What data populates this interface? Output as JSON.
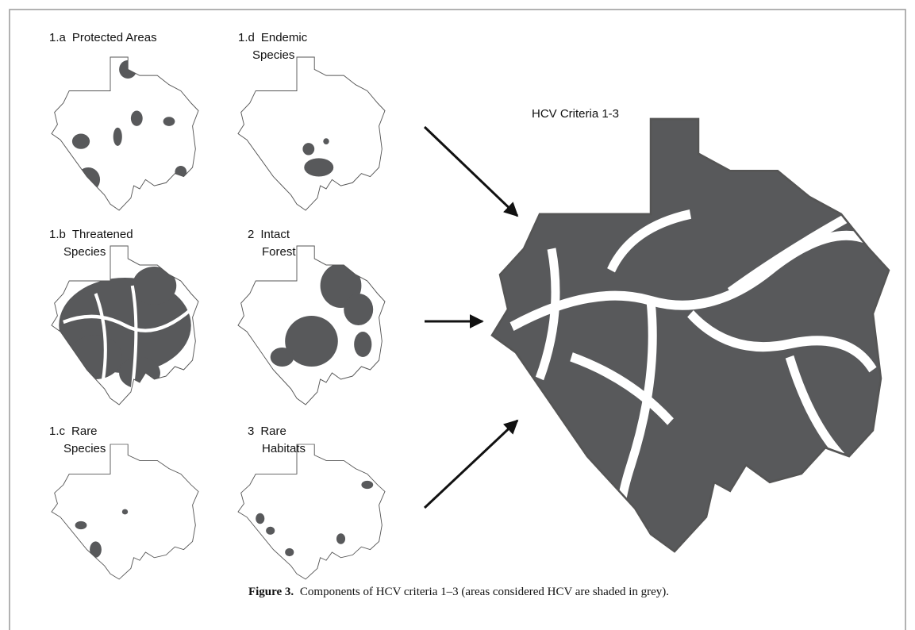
{
  "figure": {
    "panels": [
      {
        "label": "1.a",
        "lines": [
          "Protected Areas"
        ]
      },
      {
        "label": "1.d",
        "lines": [
          "Endemic",
          "Species"
        ]
      },
      {
        "label": "1.b",
        "lines": [
          "Threatened",
          "Species"
        ]
      },
      {
        "label": "2",
        "lines": [
          "Intact",
          "Forest"
        ]
      },
      {
        "label": "1.c",
        "lines": [
          "Rare",
          "Species"
        ]
      },
      {
        "label": "3",
        "lines": [
          "Rare",
          "Habitats"
        ]
      }
    ],
    "main_title": "HCV Criteria 1-3",
    "caption": {
      "label": "Figure 3.",
      "text": "Components of HCV criteria 1–3 (areas considered HCV are shaded in grey)."
    }
  }
}
